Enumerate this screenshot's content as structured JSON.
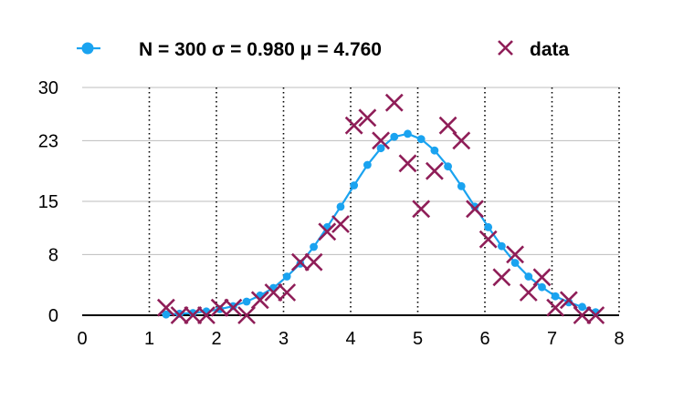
{
  "chart_data": {
    "type": "scatter",
    "title": "",
    "xlabel": "",
    "ylabel": "",
    "xlim": [
      0,
      8
    ],
    "ylim": [
      0,
      30
    ],
    "x_ticks": [
      "0",
      "1",
      "2",
      "3",
      "4",
      "5",
      "6",
      "7",
      "8"
    ],
    "y_ticks": [
      "0",
      "8",
      "15",
      "23",
      "30"
    ],
    "grid": {
      "horizontal": "solid",
      "vertical": "dotted"
    },
    "legend_position": "top",
    "series": [
      {
        "name": "N = 300 σ = 0.980 μ = 4.760",
        "kind": "line-with-markers",
        "color": "#1aa3f0",
        "x": [
          1.25,
          1.45,
          1.65,
          1.85,
          2.05,
          2.25,
          2.45,
          2.65,
          2.85,
          3.05,
          3.25,
          3.45,
          3.65,
          3.85,
          4.05,
          4.25,
          4.45,
          4.65,
          4.85,
          5.05,
          5.25,
          5.45,
          5.65,
          5.85,
          6.05,
          6.25,
          6.45,
          6.65,
          6.85,
          7.05,
          7.25,
          7.45,
          7.65
        ],
        "y": [
          0.1,
          0.2,
          0.3,
          0.5,
          0.8,
          1.2,
          1.8,
          2.6,
          3.6,
          5.1,
          6.8,
          9.0,
          11.6,
          14.3,
          17.1,
          19.8,
          22.0,
          23.5,
          23.9,
          23.2,
          21.7,
          19.6,
          17.0,
          14.3,
          11.6,
          9.1,
          6.9,
          5.1,
          3.7,
          2.5,
          1.7,
          1.1,
          0.4
        ]
      },
      {
        "name": "data",
        "kind": "scatter-x",
        "color": "#8f1e58",
        "x": [
          1.25,
          1.45,
          1.65,
          1.85,
          2.05,
          2.25,
          2.45,
          2.65,
          2.85,
          3.05,
          3.25,
          3.45,
          3.65,
          3.85,
          4.05,
          4.25,
          4.45,
          4.65,
          4.85,
          5.05,
          5.25,
          5.45,
          5.65,
          5.85,
          6.05,
          6.25,
          6.45,
          6.65,
          6.85,
          7.05,
          7.25,
          7.45,
          7.65
        ],
        "y": [
          1.0,
          0.0,
          0.0,
          0.0,
          1.0,
          1.0,
          0.0,
          2.0,
          3.0,
          3.0,
          7.0,
          7.0,
          11.0,
          12.0,
          25.0,
          26.0,
          23.0,
          28.0,
          20.0,
          14.0,
          19.0,
          25.0,
          23.0,
          14.0,
          10.0,
          5.0,
          8.0,
          3.0,
          5.0,
          1.0,
          2.0,
          0.0,
          0.0
        ]
      }
    ]
  }
}
